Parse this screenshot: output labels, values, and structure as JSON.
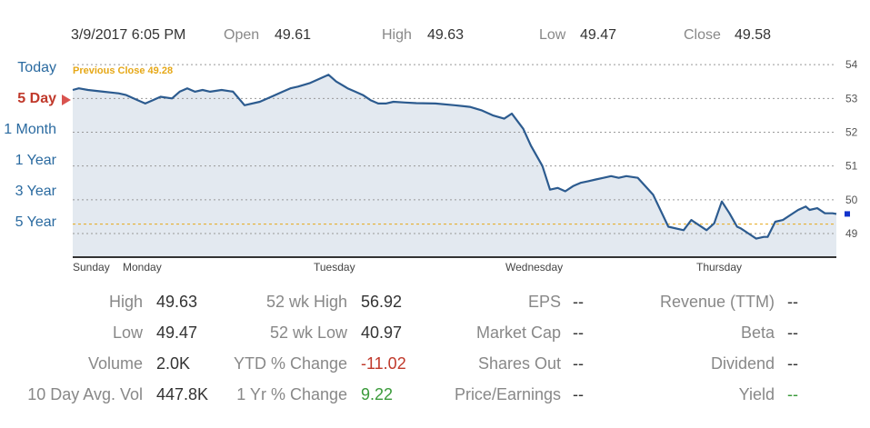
{
  "header": {
    "datetime": "3/9/2017 6:05 PM",
    "open_label": "Open",
    "open_value": "49.61",
    "high_label": "High",
    "high_value": "49.63",
    "low_label": "Low",
    "low_value": "49.47",
    "close_label": "Close",
    "close_value": "49.58"
  },
  "ranges": [
    "Today",
    "5 Day",
    "1 Month",
    "1 Year",
    "3 Year",
    "5 Year"
  ],
  "active_range": "5 Day",
  "colors": {
    "line": "#2c5b8f",
    "fill": "#e3e9f0",
    "prev_close": "#e6a817",
    "active": "#c0392b",
    "link": "#2a6aa0",
    "negative": "#c0392b",
    "positive": "#3a9a3a"
  },
  "chart_data": {
    "type": "area",
    "ylim": [
      48.3,
      54.3
    ],
    "yticks": [
      "54",
      "53",
      "52",
      "51",
      "50",
      "49"
    ],
    "x_day_labels": [
      "Sunday",
      "Monday",
      "Tuesday",
      "Wednesday",
      "Thursday"
    ],
    "prev_close_label": "Previous Close 49.28",
    "prev_close_value": 49.28,
    "last_value": 49.58,
    "series": [
      {
        "x": [
          0,
          0.008,
          0.02,
          0.04,
          0.06,
          0.07,
          0.085,
          0.095,
          0.105,
          0.115,
          0.13,
          0.14,
          0.15,
          0.16,
          0.17,
          0.18,
          0.195,
          0.21,
          0.225,
          0.245,
          0.26,
          0.275,
          0.285,
          0.295,
          0.31,
          0.325,
          0.335,
          0.345,
          0.36,
          0.37,
          0.38,
          0.39,
          0.4,
          0.41,
          0.42,
          0.435,
          0.45,
          0.475,
          0.5,
          0.52,
          0.535,
          0.55,
          0.565,
          0.575,
          0.59,
          0.6,
          0.615,
          0.625,
          0.635,
          0.645,
          0.655,
          0.665,
          0.675,
          0.685,
          0.695,
          0.705,
          0.715,
          0.725,
          0.74,
          0.76,
          0.78,
          0.8,
          0.81,
          0.82,
          0.83,
          0.84,
          0.85,
          0.86,
          0.87,
          0.875,
          0.885,
          0.895,
          0.905,
          0.91,
          0.92,
          0.93,
          0.94,
          0.95,
          0.96,
          0.965,
          0.975,
          0.985,
          0.995,
          1.0
        ],
        "values": [
          53.25,
          53.3,
          53.25,
          53.2,
          53.15,
          53.1,
          52.95,
          52.85,
          52.95,
          53.05,
          53.0,
          53.2,
          53.3,
          53.2,
          53.25,
          53.2,
          53.25,
          53.2,
          52.8,
          52.9,
          53.05,
          53.2,
          53.3,
          53.35,
          53.45,
          53.6,
          53.7,
          53.5,
          53.3,
          53.2,
          53.1,
          52.95,
          52.85,
          52.85,
          52.9,
          52.88,
          52.86,
          52.85,
          52.8,
          52.75,
          52.65,
          52.5,
          52.4,
          52.55,
          52.1,
          51.6,
          51.0,
          50.3,
          50.35,
          50.25,
          50.4,
          50.5,
          50.55,
          50.6,
          50.65,
          50.7,
          50.65,
          50.7,
          50.65,
          50.15,
          49.2,
          49.1,
          49.4,
          49.25,
          49.1,
          49.3,
          49.95,
          49.6,
          49.2,
          49.15,
          49.0,
          48.85,
          48.9,
          48.9,
          49.35,
          49.4,
          49.55,
          49.7,
          49.8,
          49.7,
          49.75,
          49.6,
          49.6,
          49.58
        ]
      }
    ]
  },
  "stats": [
    {
      "label": "High",
      "value": "49.63"
    },
    {
      "label": "Low",
      "value": "49.47"
    },
    {
      "label": "Volume",
      "value": "2.0K"
    },
    {
      "label": "10 Day Avg. Vol",
      "value": "447.8K"
    },
    {
      "label": "52 wk High",
      "value": "56.92"
    },
    {
      "label": "52 wk Low",
      "value": "40.97"
    },
    {
      "label": "YTD % Change",
      "value": "-11.02"
    },
    {
      "label": "1 Yr % Change",
      "value": "9.22"
    },
    {
      "label": "EPS",
      "value": "--"
    },
    {
      "label": "Market Cap",
      "value": "--"
    },
    {
      "label": "Shares Out",
      "value": "--"
    },
    {
      "label": "Price/Earnings",
      "value": "--"
    },
    {
      "label": "Revenue (TTM)",
      "value": "--"
    },
    {
      "label": "Beta",
      "value": "--"
    },
    {
      "label": "Dividend",
      "value": "--"
    },
    {
      "label": "Yield",
      "value": "--"
    }
  ]
}
